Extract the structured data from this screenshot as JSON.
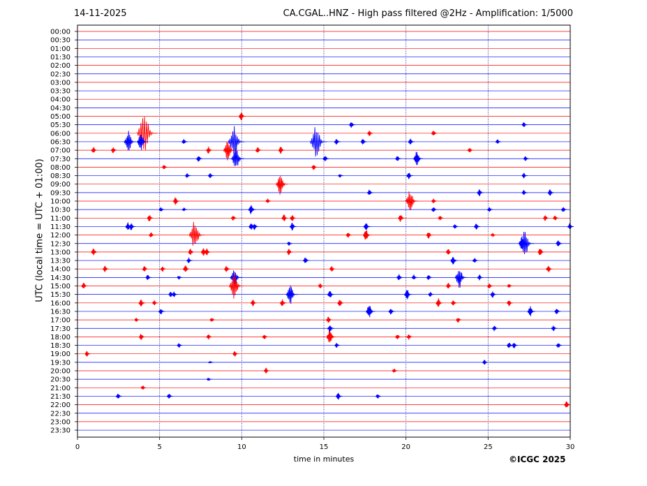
{
  "header": {
    "date": "14-11-2025",
    "title": "CA.CGAL..HNZ - High pass filtered @2Hz - Amplification: 1/5000"
  },
  "footer": {
    "copyright": "©ICGC 2025"
  },
  "chart_data": {
    "type": "line",
    "title": "CA.CGAL..HNZ - High pass filtered @2Hz - Amplification: 1/5000",
    "xlabel": "time in minutes",
    "ylabel": "UTC (local time = UTC + 01:00)",
    "xlim": [
      0,
      30
    ],
    "xticks": [
      "0",
      "5",
      "10",
      "15",
      "20",
      "25",
      "30"
    ],
    "vertical_gridlines_at": [
      5,
      10,
      15,
      20,
      25
    ],
    "grid": true,
    "colors": {
      "red": "#ff0000",
      "blue": "#0000ff",
      "grid": "#000080"
    },
    "rows": [
      "00:00",
      "00:30",
      "01:00",
      "01:30",
      "02:00",
      "02:30",
      "03:00",
      "03:30",
      "04:00",
      "04:30",
      "05:00",
      "05:30",
      "06:00",
      "06:30",
      "07:00",
      "07:30",
      "08:00",
      "08:30",
      "09:00",
      "09:30",
      "10:00",
      "10:30",
      "11:00",
      "11:30",
      "12:00",
      "12:30",
      "13:00",
      "13:30",
      "14:00",
      "14:30",
      "15:00",
      "15:30",
      "16:00",
      "16:30",
      "17:00",
      "17:30",
      "18:00",
      "18:30",
      "19:00",
      "19:30",
      "20:00",
      "20:30",
      "21:00",
      "21:30",
      "22:00",
      "22:30",
      "23:00",
      "23:30"
    ],
    "row_colors": "alternating red/blue starting with red at 00:00",
    "events": [
      {
        "row": "05:00",
        "t": 10.0,
        "amp": 0.5
      },
      {
        "row": "05:30",
        "t": 16.7,
        "amp": 0.4
      },
      {
        "row": "05:30",
        "t": 27.2,
        "amp": 0.35
      },
      {
        "row": "06:00",
        "t": 4.15,
        "amp": 2.5
      },
      {
        "row": "06:00",
        "t": 17.8,
        "amp": 0.35
      },
      {
        "row": "06:00",
        "t": 21.7,
        "amp": 0.35
      },
      {
        "row": "06:30",
        "t": 3.15,
        "amp": 1.3
      },
      {
        "row": "06:30",
        "t": 3.9,
        "amp": 1.1
      },
      {
        "row": "06:30",
        "t": 6.5,
        "amp": 0.35
      },
      {
        "row": "06:30",
        "t": 9.6,
        "amp": 1.9
      },
      {
        "row": "06:30",
        "t": 14.6,
        "amp": 2.0
      },
      {
        "row": "06:30",
        "t": 15.8,
        "amp": 0.4
      },
      {
        "row": "06:30",
        "t": 17.4,
        "amp": 0.4
      },
      {
        "row": "06:30",
        "t": 20.3,
        "amp": 0.4
      },
      {
        "row": "06:30",
        "t": 25.6,
        "amp": 0.3
      },
      {
        "row": "07:00",
        "t": 1.0,
        "amp": 0.4
      },
      {
        "row": "07:00",
        "t": 2.2,
        "amp": 0.4
      },
      {
        "row": "07:00",
        "t": 8.0,
        "amp": 0.45
      },
      {
        "row": "07:00",
        "t": 9.2,
        "amp": 1.3
      },
      {
        "row": "07:00",
        "t": 11.0,
        "amp": 0.4
      },
      {
        "row": "07:00",
        "t": 12.4,
        "amp": 0.45
      },
      {
        "row": "07:00",
        "t": 23.9,
        "amp": 0.35
      },
      {
        "row": "07:30",
        "t": 7.4,
        "amp": 0.4
      },
      {
        "row": "07:30",
        "t": 9.7,
        "amp": 1.4
      },
      {
        "row": "07:30",
        "t": 15.1,
        "amp": 0.4
      },
      {
        "row": "07:30",
        "t": 19.5,
        "amp": 0.35
      },
      {
        "row": "07:30",
        "t": 20.7,
        "amp": 0.9
      },
      {
        "row": "07:30",
        "t": 27.3,
        "amp": 0.3
      },
      {
        "row": "08:00",
        "t": 5.3,
        "amp": 0.3
      },
      {
        "row": "08:00",
        "t": 14.4,
        "amp": 0.35
      },
      {
        "row": "08:30",
        "t": 6.7,
        "amp": 0.3
      },
      {
        "row": "08:30",
        "t": 8.1,
        "amp": 0.35
      },
      {
        "row": "08:30",
        "t": 16.0,
        "amp": 0.25
      },
      {
        "row": "08:30",
        "t": 20.2,
        "amp": 0.45
      },
      {
        "row": "08:30",
        "t": 27.2,
        "amp": 0.35
      },
      {
        "row": "09:00",
        "t": 12.4,
        "amp": 1.3
      },
      {
        "row": "09:30",
        "t": 17.8,
        "amp": 0.4
      },
      {
        "row": "09:30",
        "t": 24.5,
        "amp": 0.45
      },
      {
        "row": "09:30",
        "t": 27.2,
        "amp": 0.35
      },
      {
        "row": "09:30",
        "t": 28.8,
        "amp": 0.4
      },
      {
        "row": "10:00",
        "t": 6.0,
        "amp": 0.5
      },
      {
        "row": "10:00",
        "t": 11.6,
        "amp": 0.3
      },
      {
        "row": "10:00",
        "t": 20.3,
        "amp": 1.4
      },
      {
        "row": "10:00",
        "t": 21.7,
        "amp": 0.3
      },
      {
        "row": "10:30",
        "t": 5.1,
        "amp": 0.3
      },
      {
        "row": "10:30",
        "t": 6.5,
        "amp": 0.25
      },
      {
        "row": "10:30",
        "t": 10.6,
        "amp": 0.6
      },
      {
        "row": "10:30",
        "t": 21.7,
        "amp": 0.35
      },
      {
        "row": "10:30",
        "t": 25.1,
        "amp": 0.3
      },
      {
        "row": "10:30",
        "t": 29.6,
        "amp": 0.35
      },
      {
        "row": "11:00",
        "t": 4.4,
        "amp": 0.45
      },
      {
        "row": "11:00",
        "t": 9.5,
        "amp": 0.35
      },
      {
        "row": "11:00",
        "t": 12.6,
        "amp": 0.45
      },
      {
        "row": "11:00",
        "t": 13.1,
        "amp": 0.4
      },
      {
        "row": "11:00",
        "t": 19.7,
        "amp": 0.5
      },
      {
        "row": "11:00",
        "t": 22.1,
        "amp": 0.35
      },
      {
        "row": "11:00",
        "t": 28.5,
        "amp": 0.35
      },
      {
        "row": "11:00",
        "t": 29.1,
        "amp": 0.35
      },
      {
        "row": "11:30",
        "t": 3.1,
        "amp": 0.5
      },
      {
        "row": "11:30",
        "t": 3.3,
        "amp": 0.45
      },
      {
        "row": "11:30",
        "t": 10.6,
        "amp": 0.45
      },
      {
        "row": "11:30",
        "t": 10.8,
        "amp": 0.4
      },
      {
        "row": "11:30",
        "t": 13.1,
        "amp": 0.5
      },
      {
        "row": "11:30",
        "t": 17.6,
        "amp": 0.5
      },
      {
        "row": "11:30",
        "t": 23.0,
        "amp": 0.3
      },
      {
        "row": "11:30",
        "t": 24.3,
        "amp": 0.4
      },
      {
        "row": "11:30",
        "t": 30.0,
        "amp": 0.4
      },
      {
        "row": "12:00",
        "t": 4.5,
        "amp": 0.35
      },
      {
        "row": "12:00",
        "t": 7.2,
        "amp": 1.8
      },
      {
        "row": "12:00",
        "t": 16.5,
        "amp": 0.35
      },
      {
        "row": "12:00",
        "t": 17.6,
        "amp": 0.7
      },
      {
        "row": "12:00",
        "t": 21.4,
        "amp": 0.45
      },
      {
        "row": "12:00",
        "t": 25.3,
        "amp": 0.25
      },
      {
        "row": "12:30",
        "t": 12.9,
        "amp": 0.25
      },
      {
        "row": "12:30",
        "t": 27.1,
        "amp": 0.9
      },
      {
        "row": "12:30",
        "t": 27.3,
        "amp": 1.6
      },
      {
        "row": "12:30",
        "t": 29.3,
        "amp": 0.45
      },
      {
        "row": "13:00",
        "t": 1.0,
        "amp": 0.5
      },
      {
        "row": "13:00",
        "t": 6.9,
        "amp": 0.4
      },
      {
        "row": "13:00",
        "t": 7.7,
        "amp": 0.5
      },
      {
        "row": "13:00",
        "t": 7.9,
        "amp": 0.45
      },
      {
        "row": "13:00",
        "t": 12.9,
        "amp": 0.4
      },
      {
        "row": "13:00",
        "t": 22.6,
        "amp": 0.4
      },
      {
        "row": "13:00",
        "t": 28.2,
        "amp": 0.5
      },
      {
        "row": "13:30",
        "t": 6.8,
        "amp": 0.35
      },
      {
        "row": "13:30",
        "t": 13.9,
        "amp": 0.4
      },
      {
        "row": "13:30",
        "t": 22.9,
        "amp": 0.55
      },
      {
        "row": "13:30",
        "t": 24.2,
        "amp": 0.35
      },
      {
        "row": "14:00",
        "t": 1.7,
        "amp": 0.4
      },
      {
        "row": "14:00",
        "t": 4.1,
        "amp": 0.35
      },
      {
        "row": "14:00",
        "t": 5.2,
        "amp": 0.35
      },
      {
        "row": "14:00",
        "t": 6.6,
        "amp": 0.45
      },
      {
        "row": "14:00",
        "t": 9.1,
        "amp": 0.4
      },
      {
        "row": "14:00",
        "t": 15.5,
        "amp": 0.35
      },
      {
        "row": "14:00",
        "t": 28.7,
        "amp": 0.45
      },
      {
        "row": "14:30",
        "t": 4.3,
        "amp": 0.35
      },
      {
        "row": "14:30",
        "t": 6.2,
        "amp": 0.25
      },
      {
        "row": "14:30",
        "t": 9.6,
        "amp": 1.2
      },
      {
        "row": "14:30",
        "t": 19.6,
        "amp": 0.45
      },
      {
        "row": "14:30",
        "t": 20.5,
        "amp": 0.35
      },
      {
        "row": "14:30",
        "t": 21.4,
        "amp": 0.35
      },
      {
        "row": "14:30",
        "t": 23.3,
        "amp": 1.3
      },
      {
        "row": "14:30",
        "t": 24.5,
        "amp": 0.35
      },
      {
        "row": "15:00",
        "t": 0.4,
        "amp": 0.4
      },
      {
        "row": "15:00",
        "t": 9.6,
        "amp": 1.6
      },
      {
        "row": "15:00",
        "t": 14.8,
        "amp": 0.3
      },
      {
        "row": "15:00",
        "t": 22.6,
        "amp": 0.35
      },
      {
        "row": "15:00",
        "t": 25.1,
        "amp": 0.35
      },
      {
        "row": "15:00",
        "t": 26.3,
        "amp": 0.3
      },
      {
        "row": "15:30",
        "t": 5.7,
        "amp": 0.35
      },
      {
        "row": "15:30",
        "t": 5.9,
        "amp": 0.35
      },
      {
        "row": "15:30",
        "t": 13.0,
        "amp": 1.2
      },
      {
        "row": "15:30",
        "t": 15.4,
        "amp": 0.5
      },
      {
        "row": "15:30",
        "t": 20.1,
        "amp": 0.65
      },
      {
        "row": "15:30",
        "t": 21.5,
        "amp": 0.3
      },
      {
        "row": "15:30",
        "t": 25.3,
        "amp": 0.4
      },
      {
        "row": "16:00",
        "t": 3.9,
        "amp": 0.5
      },
      {
        "row": "16:00",
        "t": 4.7,
        "amp": 0.3
      },
      {
        "row": "16:00",
        "t": 10.7,
        "amp": 0.4
      },
      {
        "row": "16:00",
        "t": 12.5,
        "amp": 0.45
      },
      {
        "row": "16:00",
        "t": 16.0,
        "amp": 0.45
      },
      {
        "row": "16:00",
        "t": 22.0,
        "amp": 0.55
      },
      {
        "row": "16:00",
        "t": 22.9,
        "amp": 0.35
      },
      {
        "row": "16:00",
        "t": 26.3,
        "amp": 0.4
      },
      {
        "row": "16:30",
        "t": 5.1,
        "amp": 0.4
      },
      {
        "row": "16:30",
        "t": 17.8,
        "amp": 0.85
      },
      {
        "row": "16:30",
        "t": 19.1,
        "amp": 0.4
      },
      {
        "row": "16:30",
        "t": 27.6,
        "amp": 0.65
      },
      {
        "row": "16:30",
        "t": 29.2,
        "amp": 0.4
      },
      {
        "row": "17:00",
        "t": 3.6,
        "amp": 0.25
      },
      {
        "row": "17:00",
        "t": 8.2,
        "amp": 0.3
      },
      {
        "row": "17:00",
        "t": 15.3,
        "amp": 0.4
      },
      {
        "row": "17:00",
        "t": 23.2,
        "amp": 0.35
      },
      {
        "row": "17:30",
        "t": 15.4,
        "amp": 0.5
      },
      {
        "row": "17:30",
        "t": 25.4,
        "amp": 0.35
      },
      {
        "row": "17:30",
        "t": 29.0,
        "amp": 0.35
      },
      {
        "row": "18:00",
        "t": 3.9,
        "amp": 0.4
      },
      {
        "row": "18:00",
        "t": 8.0,
        "amp": 0.35
      },
      {
        "row": "18:00",
        "t": 11.4,
        "amp": 0.35
      },
      {
        "row": "18:00",
        "t": 15.4,
        "amp": 0.9
      },
      {
        "row": "18:00",
        "t": 19.5,
        "amp": 0.35
      },
      {
        "row": "18:00",
        "t": 20.2,
        "amp": 0.35
      },
      {
        "row": "18:30",
        "t": 6.2,
        "amp": 0.3
      },
      {
        "row": "18:30",
        "t": 15.8,
        "amp": 0.3
      },
      {
        "row": "18:30",
        "t": 26.3,
        "amp": 0.4
      },
      {
        "row": "18:30",
        "t": 26.6,
        "amp": 0.4
      },
      {
        "row": "18:30",
        "t": 29.3,
        "amp": 0.35
      },
      {
        "row": "19:00",
        "t": 0.6,
        "amp": 0.35
      },
      {
        "row": "19:00",
        "t": 9.6,
        "amp": 0.35
      },
      {
        "row": "19:30",
        "t": 8.1,
        "amp": 0.15
      },
      {
        "row": "19:30",
        "t": 24.8,
        "amp": 0.3
      },
      {
        "row": "20:00",
        "t": 11.5,
        "amp": 0.35
      },
      {
        "row": "20:00",
        "t": 19.3,
        "amp": 0.3
      },
      {
        "row": "20:30",
        "t": 8.0,
        "amp": 0.2
      },
      {
        "row": "21:00",
        "t": 4.0,
        "amp": 0.3
      },
      {
        "row": "21:30",
        "t": 2.5,
        "amp": 0.35
      },
      {
        "row": "21:30",
        "t": 5.6,
        "amp": 0.35
      },
      {
        "row": "21:30",
        "t": 15.9,
        "amp": 0.45
      },
      {
        "row": "21:30",
        "t": 18.3,
        "amp": 0.3
      },
      {
        "row": "22:00",
        "t": 29.8,
        "amp": 0.45
      }
    ]
  }
}
